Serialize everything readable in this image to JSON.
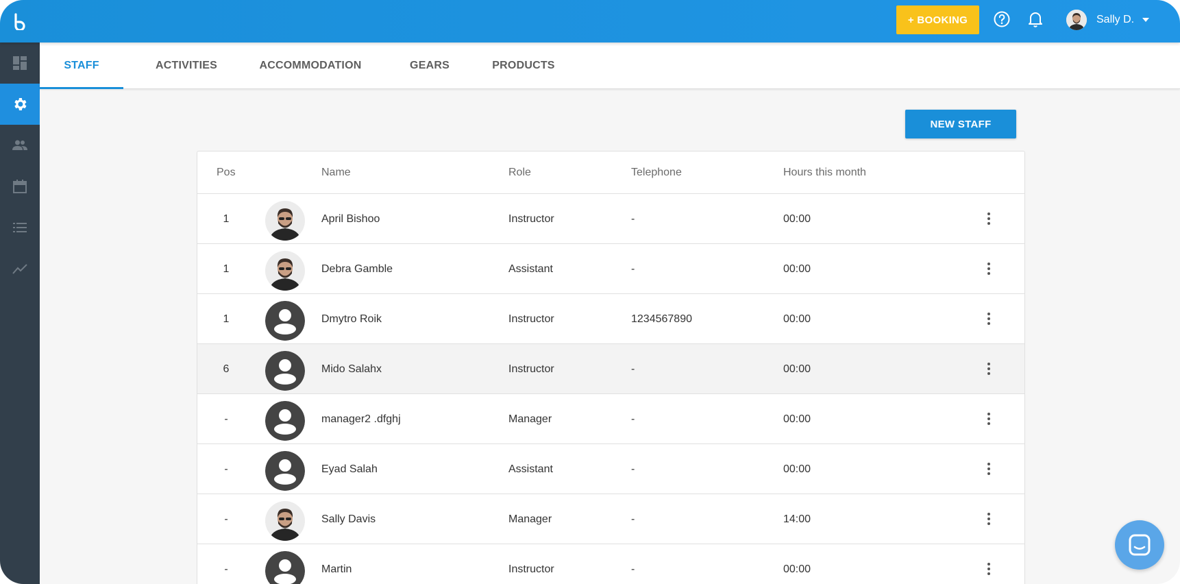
{
  "topbar": {
    "booking_label": "+ BOOKING",
    "user_name": "Sally D."
  },
  "sidebar": {
    "items": [
      {
        "icon": "dashboard-icon",
        "active": false
      },
      {
        "icon": "gear-icon",
        "active": true
      },
      {
        "icon": "people-icon",
        "active": false
      },
      {
        "icon": "calendar-icon",
        "active": false
      },
      {
        "icon": "list-icon",
        "active": false
      },
      {
        "icon": "chart-icon",
        "active": false
      }
    ]
  },
  "tabs": [
    {
      "label": "STAFF",
      "active": true
    },
    {
      "label": "ACTIVITIES",
      "active": false
    },
    {
      "label": "ACCOMMODATION",
      "active": false
    },
    {
      "label": "GEARS",
      "active": false
    },
    {
      "label": "PRODUCTS",
      "active": false
    }
  ],
  "new_staff_label": "NEW STAFF",
  "table": {
    "headers": {
      "pos": "Pos",
      "name": "Name",
      "role": "Role",
      "telephone": "Telephone",
      "hours": "Hours this month"
    },
    "rows": [
      {
        "pos": "1",
        "name": "April Bishoo",
        "role": "Instructor",
        "telephone": "-",
        "hours": "00:00",
        "avatar": "photo"
      },
      {
        "pos": "1",
        "name": "Debra Gamble",
        "role": "Assistant",
        "telephone": "-",
        "hours": "00:00",
        "avatar": "photo"
      },
      {
        "pos": "1",
        "name": "Dmytro Roik",
        "role": "Instructor",
        "telephone": "1234567890",
        "hours": "00:00",
        "avatar": "placeholder"
      },
      {
        "pos": "6",
        "name": "Mido Salahx",
        "role": "Instructor",
        "telephone": "-",
        "hours": "00:00",
        "avatar": "placeholder"
      },
      {
        "pos": "-",
        "name": "manager2 .dfghj",
        "role": "Manager",
        "telephone": "-",
        "hours": "00:00",
        "avatar": "placeholder"
      },
      {
        "pos": "-",
        "name": "Eyad Salah",
        "role": "Assistant",
        "telephone": "-",
        "hours": "00:00",
        "avatar": "placeholder"
      },
      {
        "pos": "-",
        "name": "Sally Davis",
        "role": "Manager",
        "telephone": "-",
        "hours": "14:00",
        "avatar": "photo"
      },
      {
        "pos": "-",
        "name": "Martin",
        "role": "Instructor",
        "telephone": "-",
        "hours": "00:00",
        "avatar": "placeholder"
      }
    ]
  },
  "colors": {
    "primary": "#1a8fd9",
    "booking": "#f9c21b",
    "sidebar": "#323f4b"
  }
}
